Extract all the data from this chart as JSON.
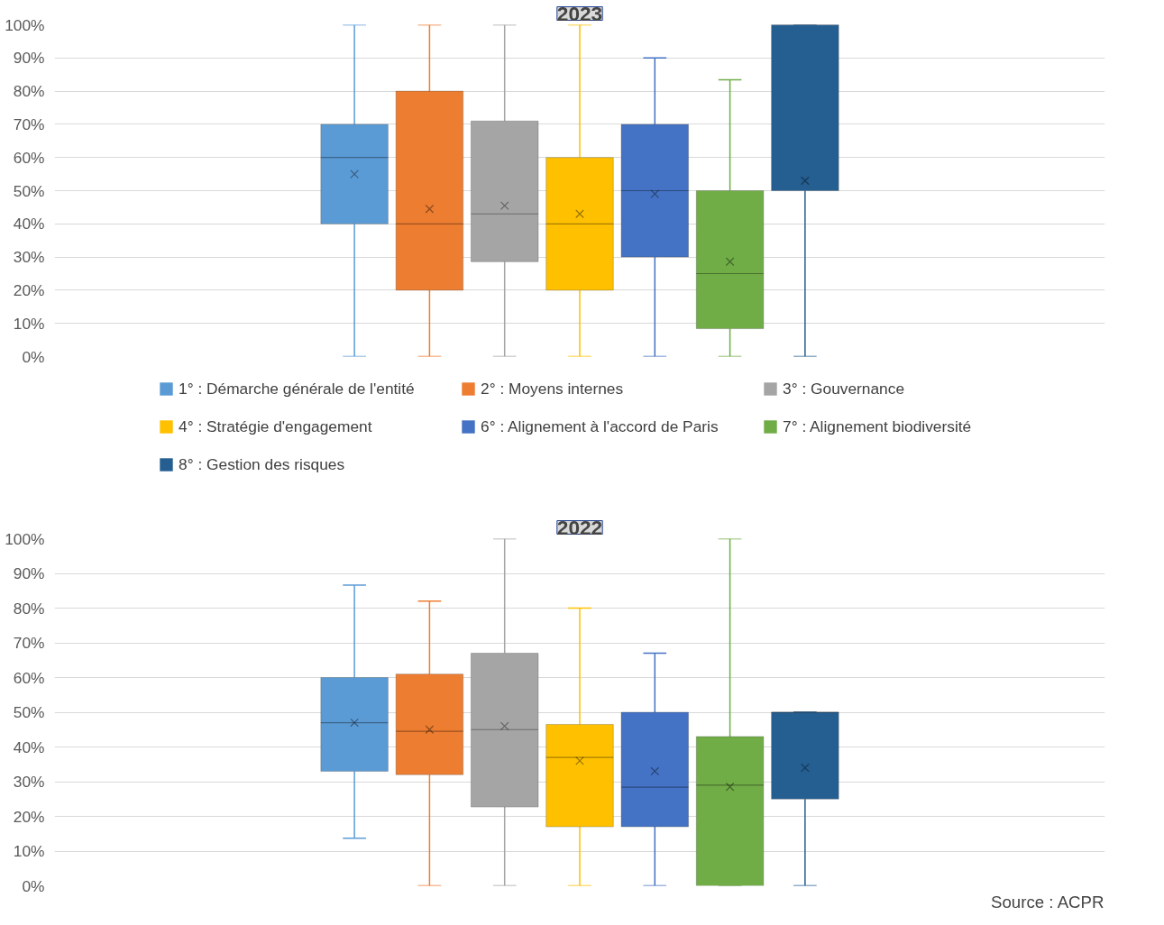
{
  "chart_data": [
    {
      "type": "box",
      "title": "2023",
      "categories": [
        null
      ],
      "series": [
        {
          "name": "1° : Démarche générale de l'entité",
          "color": "#5b9bd5",
          "boxes": [
            {
              "low": 0,
              "q1": 40,
              "median": 60,
              "q3": 70,
              "high": 100,
              "mean": 55
            }
          ]
        },
        {
          "name": "2° : Moyens internes",
          "color": "#ed7d31",
          "boxes": [
            {
              "low": 0,
              "q1": 20,
              "median": 40,
              "q3": 80,
              "high": 100,
              "mean": 44.5
            }
          ]
        },
        {
          "name": "3° : Gouvernance",
          "color": "#a5a5a5",
          "boxes": [
            {
              "low": 0,
              "q1": 28.6,
              "median": 43,
              "q3": 71,
              "high": 100,
              "mean": 45.5
            }
          ]
        },
        {
          "name": "4° : Stratégie d'engagement",
          "color": "#ffc000",
          "boxes": [
            {
              "low": 0,
              "q1": 20,
              "median": 40,
              "q3": 60,
              "high": 100,
              "mean": 43
            }
          ]
        },
        {
          "name": "6° : Alignement à l'accord de Paris",
          "color": "#4472c4",
          "boxes": [
            {
              "low": 0,
              "q1": 30,
              "median": 50,
              "q3": 70,
              "high": 90,
              "mean": 49
            }
          ]
        },
        {
          "name": "7° : Alignement biodiversité",
          "color": "#70ad47",
          "boxes": [
            {
              "low": 0,
              "q1": 8.4,
              "median": 25,
              "q3": 50,
              "high": 83.4,
              "mean": 28.6
            }
          ]
        },
        {
          "name": "8° : Gestion des risques",
          "color": "#255e91",
          "boxes": [
            {
              "low": 0,
              "q1": 50,
              "median": 100,
              "q3": 100,
              "high": 100,
              "mean": 53
            }
          ]
        }
      ],
      "ylim": [
        0,
        100
      ],
      "yticks": [
        {
          "value": 0,
          "label": "0%"
        },
        {
          "value": 10,
          "label": "10%"
        },
        {
          "value": 20,
          "label": "20%"
        },
        {
          "value": 30,
          "label": "30%"
        },
        {
          "value": 40,
          "label": "40%"
        },
        {
          "value": 50,
          "label": "50%"
        },
        {
          "value": 60,
          "label": "60%"
        },
        {
          "value": 70,
          "label": "70%"
        },
        {
          "value": 80,
          "label": "80%"
        },
        {
          "value": 90,
          "label": "90%"
        },
        {
          "value": 100,
          "label": "100%"
        }
      ],
      "grid": "y",
      "legend": "bottom",
      "tick_labels": "y"
    },
    {
      "type": "box",
      "title": "2022",
      "categories": [
        null
      ],
      "series": [
        {
          "color": "#5b9bd5",
          "boxes": [
            {
              "low": 13.7,
              "q1": 33,
              "median": 47,
              "q3": 60,
              "high": 86.6,
              "mean": 47
            }
          ]
        },
        {
          "color": "#ed7d31",
          "boxes": [
            {
              "low": 0,
              "q1": 32,
              "median": 44.5,
              "q3": 61,
              "high": 82,
              "mean": 45
            }
          ]
        },
        {
          "color": "#a5a5a5",
          "boxes": [
            {
              "low": 0,
              "q1": 22.7,
              "median": 45,
              "q3": 67,
              "high": 100,
              "mean": 46
            }
          ]
        },
        {
          "color": "#ffc000",
          "boxes": [
            {
              "low": 0,
              "q1": 17,
              "median": 37,
              "q3": 46.5,
              "high": 80,
              "mean": 36
            }
          ]
        },
        {
          "color": "#4472c4",
          "boxes": [
            {
              "low": 0,
              "q1": 17,
              "median": 28.4,
              "q3": 50,
              "high": 67,
              "mean": 33
            }
          ]
        },
        {
          "color": "#70ad47",
          "boxes": [
            {
              "low": 0,
              "q1": 0,
              "median": 29,
              "q3": 43,
              "high": 100,
              "mean": 28.5
            }
          ]
        },
        {
          "color": "#255e91",
          "boxes": [
            {
              "low": 0,
              "q1": 25,
              "median": 50,
              "q3": 50,
              "high": 50,
              "mean": 34
            }
          ]
        }
      ],
      "ylim": [
        0,
        100
      ],
      "yticks": [
        {
          "value": 0,
          "label": "0%"
        },
        {
          "value": 10,
          "label": "10%"
        },
        {
          "value": 20,
          "label": "20%"
        },
        {
          "value": 30,
          "label": "30%"
        },
        {
          "value": 40,
          "label": "40%"
        },
        {
          "value": 50,
          "label": "50%"
        },
        {
          "value": 60,
          "label": "60%"
        },
        {
          "value": 70,
          "label": "70%"
        },
        {
          "value": 80,
          "label": "80%"
        },
        {
          "value": 90,
          "label": "90%"
        },
        {
          "value": 100,
          "label": "100%"
        }
      ],
      "grid": "y",
      "legend": false,
      "tick_labels": "y",
      "annotations": [
        "Source : ACPR"
      ]
    }
  ]
}
